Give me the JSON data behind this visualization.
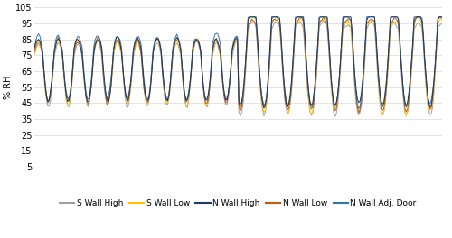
{
  "title": "",
  "ylabel": "% RH",
  "ylim": [
    5,
    105
  ],
  "yticks": [
    5,
    15,
    25,
    35,
    45,
    55,
    65,
    75,
    85,
    95,
    105
  ],
  "series_colors": {
    "S Wall High": "#A0A0A0",
    "S Wall Low": "#FFC000",
    "N Wall High": "#1F3864",
    "N Wall Low": "#C55A11",
    "N Wall Adj. Door": "#2E75B6"
  },
  "legend_order": [
    "S Wall High",
    "S Wall Low",
    "N Wall High",
    "N Wall Low",
    "N Wall Adj. Door"
  ],
  "bg_color": "#FFFFFF",
  "grid_color": "#D9D9D9",
  "line_width": 0.7
}
